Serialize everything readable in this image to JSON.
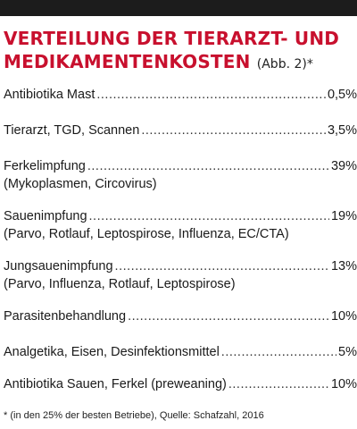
{
  "title": {
    "line1": "VERTEILUNG DER TIERARZT- UND",
    "line2": "MEDIKAMENTENKOSTEN",
    "abb": "(Abb. 2)*"
  },
  "rows": [
    {
      "label": "Antibiotika Mast",
      "value": "0,5%"
    },
    {
      "label": "Tierarzt, TGD, Scannen",
      "value": "3,5%"
    },
    {
      "label": "Ferkelimpfung",
      "value": "39%",
      "sub": "(Mykoplasmen, Circovirus)"
    },
    {
      "label": "Sauenimpfung",
      "value": "19%",
      "sub": "(Parvo, Rotlauf, Leptospirose, Influenza, EC/CTA)"
    },
    {
      "label": "Jungsauenimpfung",
      "value": "13%",
      "sub": "(Parvo, Influenza, Rotlauf, Leptospirose)"
    },
    {
      "label": "Parasitenbehandlung",
      "value": "10%"
    },
    {
      "label": "Analgetika, Eisen, Desinfektionsmittel",
      "value": "5%"
    },
    {
      "label": "Antibiotika Sauen, Ferkel (preweaning)",
      "value": "10%"
    }
  ],
  "footnote": "* (in den 25% der besten Betriebe), Quelle: Schafzahl, 2016"
}
